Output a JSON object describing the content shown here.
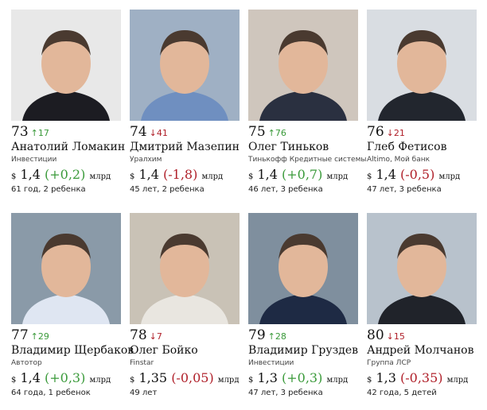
{
  "currency": "$",
  "unit": "млрд",
  "people": [
    {
      "rank": "73",
      "arrow": "↑",
      "change": "17",
      "trend": "up",
      "name": "Анатолий Ломакин",
      "company": "Инвестиции",
      "worth": "1,4",
      "delta": "(+0,2)",
      "delta_trend": "up",
      "info": "61 год, 2 ребенка"
    },
    {
      "rank": "74",
      "arrow": "↓",
      "change": "41",
      "trend": "down",
      "name": "Дмитрий Мазепин",
      "company": "Уралхим",
      "worth": "1,4",
      "delta": "(-1,8)",
      "delta_trend": "down",
      "info": "45 лет, 2 ребенка"
    },
    {
      "rank": "75",
      "arrow": "↑",
      "change": "76",
      "trend": "up",
      "name": "Олег Тиньков",
      "company": "Тинькофф Кредитные системы",
      "worth": "1,4",
      "delta": "(+0,7)",
      "delta_trend": "up",
      "info": "46 лет, 3 ребенка"
    },
    {
      "rank": "76",
      "arrow": "↓",
      "change": "21",
      "trend": "down",
      "name": "Глеб Фетисов",
      "company": "Altimo, Мой банк",
      "worth": "1,4",
      "delta": "(-0,5)",
      "delta_trend": "down",
      "info": "47 лет, 3 ребенка"
    },
    {
      "rank": "77",
      "arrow": "↑",
      "change": "29",
      "trend": "up",
      "name": "Владимир Щербаков",
      "company": "Автотор",
      "worth": "1,4",
      "delta": "(+0,3)",
      "delta_trend": "up",
      "info": "64 года, 1 ребенок"
    },
    {
      "rank": "78",
      "arrow": "↓",
      "change": "7",
      "trend": "down",
      "name": "Олег Бойко",
      "company": "Finstar",
      "worth": "1,35",
      "delta": "(-0,05)",
      "delta_trend": "down",
      "info": "49 лет"
    },
    {
      "rank": "79",
      "arrow": "↑",
      "change": "28",
      "trend": "up",
      "name": "Владимир Груздев",
      "company": "Инвестиции",
      "worth": "1,3",
      "delta": "(+0,3)",
      "delta_trend": "up",
      "info": "47 лет, 3 ребенка"
    },
    {
      "rank": "80",
      "arrow": "↓",
      "change": "15",
      "trend": "down",
      "name": "Андрей Молчанов",
      "company": "Группа ЛСР",
      "worth": "1,3",
      "delta": "(-0,35)",
      "delta_trend": "down",
      "info": "42 года, 5 детей"
    }
  ]
}
